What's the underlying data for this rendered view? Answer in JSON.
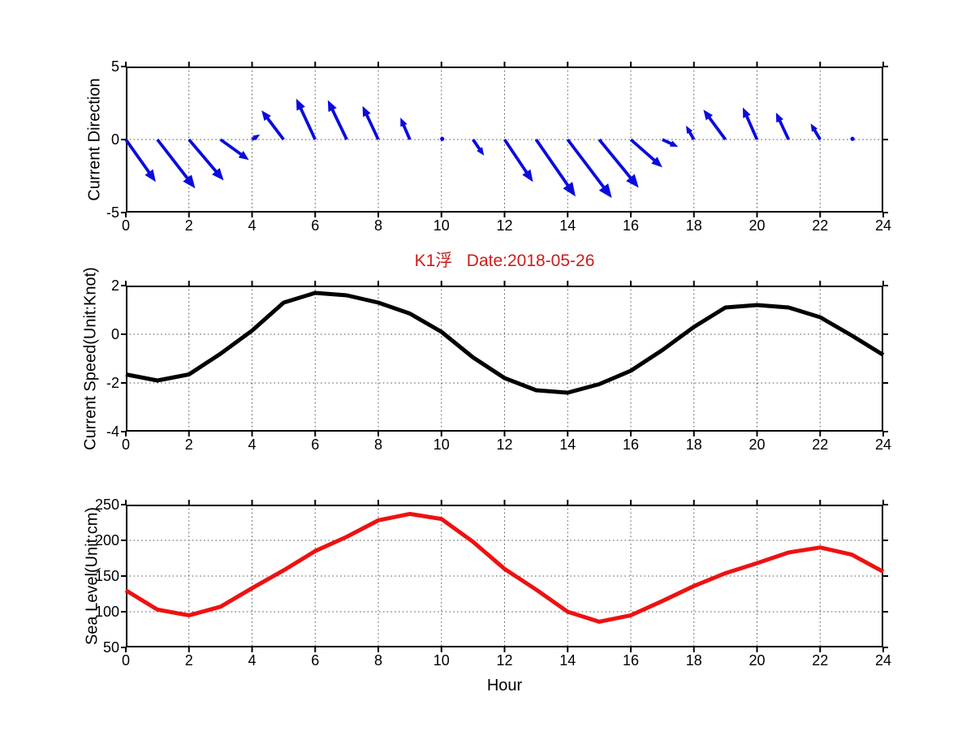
{
  "figure": {
    "title": {
      "text": "K1浮   Date:2018-05-26",
      "color": "#cc1c1c"
    },
    "xlabel": "Hour",
    "background": "#ffffff",
    "axis_color": "#000000",
    "grid_color": "#555555"
  },
  "chart_data": [
    {
      "type": "quiver",
      "name": "current-direction",
      "ylabel": "Current Direction",
      "color": "#0a0ae0",
      "xlim": [
        0,
        24
      ],
      "ylim": [
        -5,
        5
      ],
      "xticks": [
        0,
        2,
        4,
        6,
        8,
        10,
        12,
        14,
        16,
        18,
        20,
        22,
        24
      ],
      "yticks": [
        5,
        0,
        -5
      ],
      "grid": true,
      "hours": [
        0,
        1,
        2,
        3,
        4,
        5,
        6,
        7,
        8,
        9,
        10,
        11,
        12,
        13,
        14,
        15,
        16,
        17,
        18,
        19,
        20,
        21,
        22,
        23
      ],
      "u": [
        0.95,
        1.2,
        1.1,
        0.9,
        0.25,
        -0.7,
        -0.6,
        -0.6,
        -0.5,
        -0.3,
        0.05,
        0.35,
        0.9,
        1.25,
        1.4,
        1.25,
        1.0,
        0.5,
        -0.25,
        -0.7,
        -0.45,
        -0.4,
        -0.3,
        0.05
      ],
      "v": [
        -2.9,
        -3.35,
        -2.8,
        -1.4,
        0.35,
        2.0,
        2.8,
        2.7,
        2.3,
        1.5,
        0.1,
        -1.1,
        -2.9,
        -3.9,
        -4.0,
        -3.3,
        -1.9,
        -0.5,
        0.95,
        2.05,
        2.2,
        1.85,
        1.1,
        0.1
      ]
    },
    {
      "type": "line",
      "name": "current-speed",
      "ylabel": "Current Speed(Unit:Knot)",
      "color": "#000000",
      "line_width": 5,
      "xlim": [
        0,
        24
      ],
      "ylim": [
        -4,
        2
      ],
      "xticks": [
        0,
        2,
        4,
        6,
        8,
        10,
        12,
        14,
        16,
        18,
        20,
        22,
        24
      ],
      "yticks": [
        2,
        0,
        -2,
        -4
      ],
      "grid": true,
      "x": [
        0,
        1,
        2,
        3,
        4,
        5,
        6,
        7,
        8,
        9,
        10,
        11,
        12,
        13,
        14,
        15,
        16,
        17,
        18,
        19,
        20,
        21,
        22,
        23,
        24
      ],
      "values": [
        -1.65,
        -1.9,
        -1.65,
        -0.8,
        0.15,
        1.3,
        1.7,
        1.6,
        1.3,
        0.85,
        0.1,
        -0.95,
        -1.8,
        -2.3,
        -2.4,
        -2.05,
        -1.5,
        -0.65,
        0.3,
        1.1,
        1.2,
        1.1,
        0.7,
        -0.05,
        -0.85
      ]
    },
    {
      "type": "line",
      "name": "sea-level",
      "ylabel": "Sea Level(Unit:cm)",
      "xlabel": "Hour",
      "color": "#ee1111",
      "line_width": 5,
      "xlim": [
        0,
        24
      ],
      "ylim": [
        50,
        250
      ],
      "xticks": [
        0,
        2,
        4,
        6,
        8,
        10,
        12,
        14,
        16,
        18,
        20,
        22,
        24
      ],
      "yticks": [
        250,
        200,
        150,
        100,
        50
      ],
      "grid": true,
      "x": [
        0,
        1,
        2,
        3,
        4,
        5,
        6,
        7,
        8,
        9,
        10,
        11,
        12,
        13,
        14,
        15,
        16,
        17,
        18,
        19,
        20,
        21,
        22,
        23,
        24
      ],
      "values": [
        130,
        103,
        95,
        107,
        133,
        158,
        185,
        205,
        228,
        237,
        230,
        198,
        160,
        131,
        100,
        86,
        95,
        115,
        136,
        154,
        168,
        183,
        190,
        180,
        156
      ]
    }
  ]
}
